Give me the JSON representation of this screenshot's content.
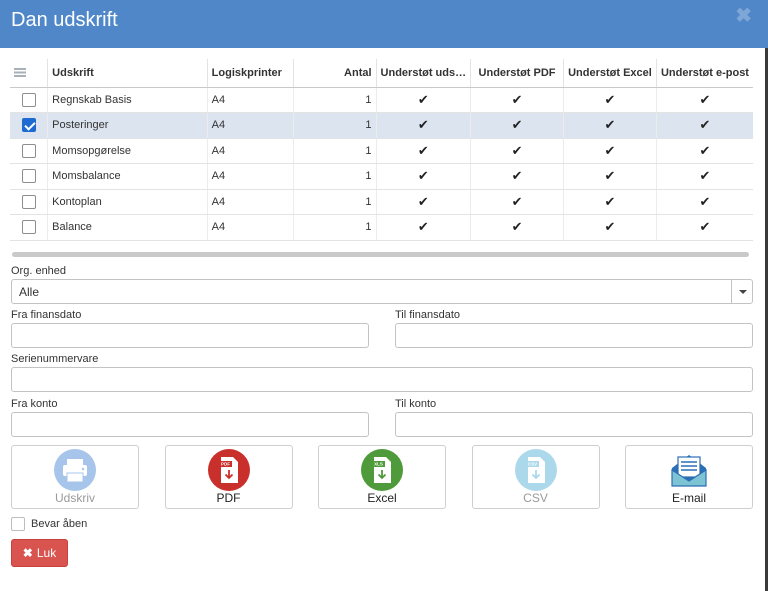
{
  "dialog": {
    "title": "Dan udskrift",
    "close_glyph": "✖"
  },
  "table": {
    "headers": [
      "Udskrift",
      "Logiskprinter",
      "Antal",
      "Understøt uds…",
      "Understøt PDF",
      "Understøt Excel",
      "Understøt e-post"
    ],
    "check_glyph": "✔",
    "rows": [
      {
        "name": "Regnskab Basis",
        "printer": "A4",
        "antal": "1",
        "checked": false
      },
      {
        "name": "Posteringer",
        "printer": "A4",
        "antal": "1",
        "checked": true
      },
      {
        "name": "Momsopgørelse",
        "printer": "A4",
        "antal": "1",
        "checked": false
      },
      {
        "name": "Momsbalance",
        "printer": "A4",
        "antal": "1",
        "checked": false
      },
      {
        "name": "Kontoplan",
        "printer": "A4",
        "antal": "1",
        "checked": false
      },
      {
        "name": "Balance",
        "printer": "A4",
        "antal": "1",
        "checked": false
      }
    ]
  },
  "form": {
    "org_label": "Org. enhed",
    "org_value": "Alle",
    "fra_finansdato_label": "Fra finansdato",
    "til_finansdato_label": "Til finansdato",
    "serienummervare_label": "Serienummervare",
    "fra_konto_label": "Fra konto",
    "til_konto_label": "Til konto"
  },
  "export_buttons": [
    {
      "label": "Udskriv",
      "icon": "printer-icon",
      "color": "#3d7fd1",
      "disabled": true
    },
    {
      "label": "PDF",
      "icon": "pdf-file-icon",
      "color": "#c9302c",
      "disabled": false
    },
    {
      "label": "Excel",
      "icon": "excel-file-icon",
      "color": "#4f9a3a",
      "disabled": false
    },
    {
      "label": "CSV",
      "icon": "csv-file-icon",
      "color": "#4aa9d6",
      "disabled": true
    },
    {
      "label": "E-mail",
      "icon": "envelope-icon",
      "color": "#2c6fb5",
      "disabled": false
    }
  ],
  "icon_tags": {
    "pdf": "PDF",
    "excel": "XLS",
    "csv": "CSV"
  },
  "footer": {
    "keep_open_label": "Bevar åben",
    "close_label": "Luk",
    "close_glyph": "✖"
  },
  "colors": {
    "header": "#4f87c9",
    "close_button": "#d9534f",
    "selected_row": "#dbe4ef"
  }
}
